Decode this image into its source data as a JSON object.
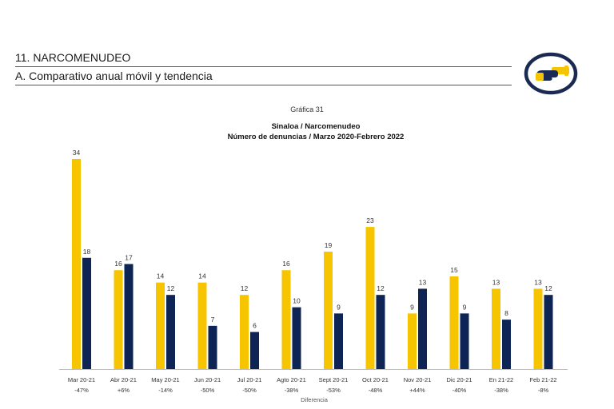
{
  "header": {
    "section": "11. NARCOMENUDEO",
    "subsection": "A. Comparativo anual móvil y tendencia",
    "logo_icon": "hand-pointing-icon",
    "accent": "#F7C500",
    "dark": "#1B2A52"
  },
  "chart_data": {
    "type": "bar",
    "caption": "Gráfica 31",
    "title": "Sinaloa / Narcomenudeo",
    "subtitle": "Número de denuncias / Marzo 2020-Febrero 2022",
    "categories": [
      "Mar 20-21",
      "Abr 20-21",
      "May 20-21",
      "Jun 20-21",
      "Jul 20-21",
      "Agto 20-21",
      "Sept 20-21",
      "Oct 20-21",
      "Nov 20-21",
      "Dic 20-21",
      "En 21-22",
      "Feb 21-22"
    ],
    "differences": [
      "-47%",
      "+6%",
      "-14%",
      "-50%",
      "-50%",
      "-38%",
      "-53%",
      "-48%",
      "+44%",
      "-40%",
      "-38%",
      "-8%"
    ],
    "xlabel": "Diferencia",
    "series": [
      {
        "color": "#F7C500",
        "values": [
          34,
          16,
          14,
          14,
          12,
          16,
          19,
          23,
          9,
          15,
          13,
          13
        ]
      },
      {
        "color": "#0E2454",
        "values": [
          18,
          17,
          12,
          7,
          6,
          10,
          9,
          12,
          13,
          9,
          8,
          12
        ]
      }
    ],
    "ylim": [
      0,
      34
    ]
  }
}
